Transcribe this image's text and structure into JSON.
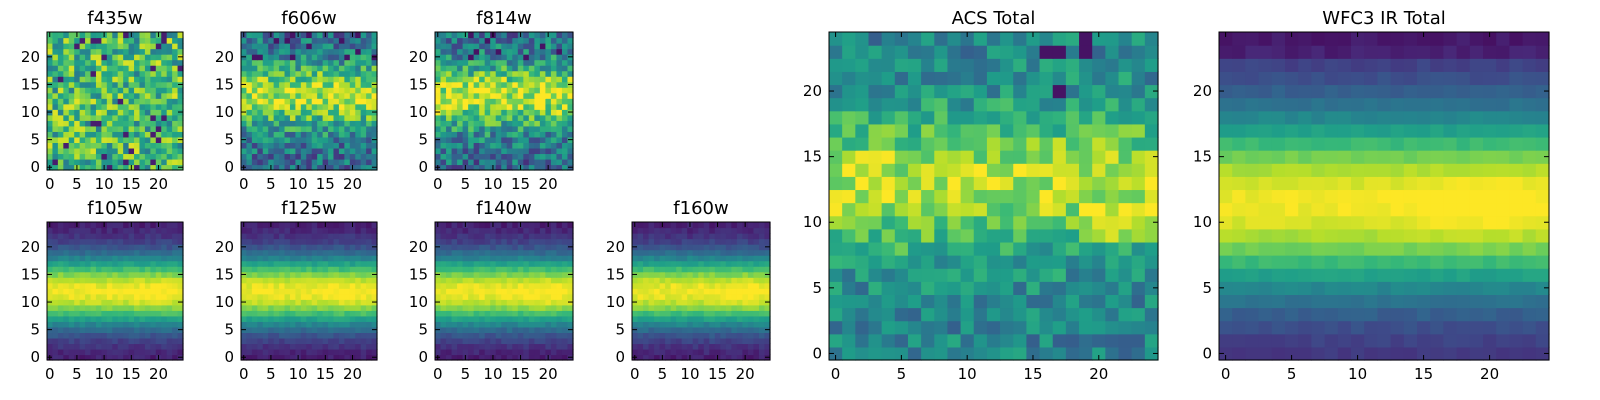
{
  "figure": {
    "background": "#ffffff",
    "colormap": "viridis"
  },
  "chart_data": [
    {
      "type": "heatmap",
      "title": "f435w",
      "grid": false,
      "xlim": [
        0,
        24
      ],
      "ylim": [
        0,
        24
      ],
      "xticks": [
        "0",
        "5",
        "10",
        "15",
        "20"
      ],
      "yticks": [
        "0",
        "5",
        "10",
        "15",
        "20"
      ],
      "profile": "noisy_flat",
      "seed": 11,
      "value_range": [
        0,
        1
      ]
    },
    {
      "type": "heatmap",
      "title": "f606w",
      "grid": false,
      "xlim": [
        0,
        24
      ],
      "ylim": [
        0,
        24
      ],
      "xticks": [
        "0",
        "5",
        "10",
        "15",
        "20"
      ],
      "yticks": [
        "0",
        "5",
        "10",
        "15",
        "20"
      ],
      "profile": "noisy_band",
      "seed": 23,
      "value_range": [
        0,
        1
      ]
    },
    {
      "type": "heatmap",
      "title": "f814w",
      "grid": false,
      "xlim": [
        0,
        24
      ],
      "ylim": [
        0,
        24
      ],
      "xticks": [
        "0",
        "5",
        "10",
        "15",
        "20"
      ],
      "yticks": [
        "0",
        "5",
        "10",
        "15",
        "20"
      ],
      "profile": "noisy_band",
      "seed": 37,
      "value_range": [
        0,
        1
      ]
    },
    {
      "type": "heatmap",
      "title": "f105w",
      "grid": false,
      "xlim": [
        0,
        24
      ],
      "ylim": [
        0,
        24
      ],
      "xticks": [
        "0",
        "5",
        "10",
        "15",
        "20"
      ],
      "yticks": [
        "0",
        "5",
        "10",
        "15",
        "20"
      ],
      "profile": "smooth_band",
      "seed": 41,
      "value_range": [
        0,
        1
      ]
    },
    {
      "type": "heatmap",
      "title": "f125w",
      "grid": false,
      "xlim": [
        0,
        24
      ],
      "ylim": [
        0,
        24
      ],
      "xticks": [
        "0",
        "5",
        "10",
        "15",
        "20"
      ],
      "yticks": [
        "0",
        "5",
        "10",
        "15",
        "20"
      ],
      "profile": "smooth_band",
      "seed": 53,
      "value_range": [
        0,
        1
      ]
    },
    {
      "type": "heatmap",
      "title": "f140w",
      "grid": false,
      "xlim": [
        0,
        24
      ],
      "ylim": [
        0,
        24
      ],
      "xticks": [
        "0",
        "5",
        "10",
        "15",
        "20"
      ],
      "yticks": [
        "0",
        "5",
        "10",
        "15",
        "20"
      ],
      "profile": "smooth_band",
      "seed": 67,
      "value_range": [
        0,
        1
      ]
    },
    {
      "type": "heatmap",
      "title": "f160w",
      "grid": false,
      "xlim": [
        0,
        24
      ],
      "ylim": [
        0,
        24
      ],
      "xticks": [
        "0",
        "5",
        "10",
        "15",
        "20"
      ],
      "yticks": [
        "0",
        "5",
        "10",
        "15",
        "20"
      ],
      "profile": "smooth_band",
      "seed": 79,
      "value_range": [
        0,
        1
      ]
    },
    {
      "type": "heatmap",
      "title": "ACS Total",
      "grid": false,
      "xlim": [
        0,
        24
      ],
      "ylim": [
        0,
        24
      ],
      "xticks": [
        "0",
        "5",
        "10",
        "15",
        "20"
      ],
      "yticks": [
        "0",
        "5",
        "10",
        "15",
        "20"
      ],
      "profile": "acs_band",
      "seed": 83,
      "value_range": [
        0,
        1
      ]
    },
    {
      "type": "heatmap",
      "title": "WFC3 IR Total",
      "grid": false,
      "xlim": [
        0,
        24
      ],
      "ylim": [
        0,
        24
      ],
      "xticks": [
        "0",
        "5",
        "10",
        "15",
        "20"
      ],
      "yticks": [
        "0",
        "5",
        "10",
        "15",
        "20"
      ],
      "profile": "ir_band",
      "seed": 97,
      "value_range": [
        0,
        1
      ]
    }
  ]
}
